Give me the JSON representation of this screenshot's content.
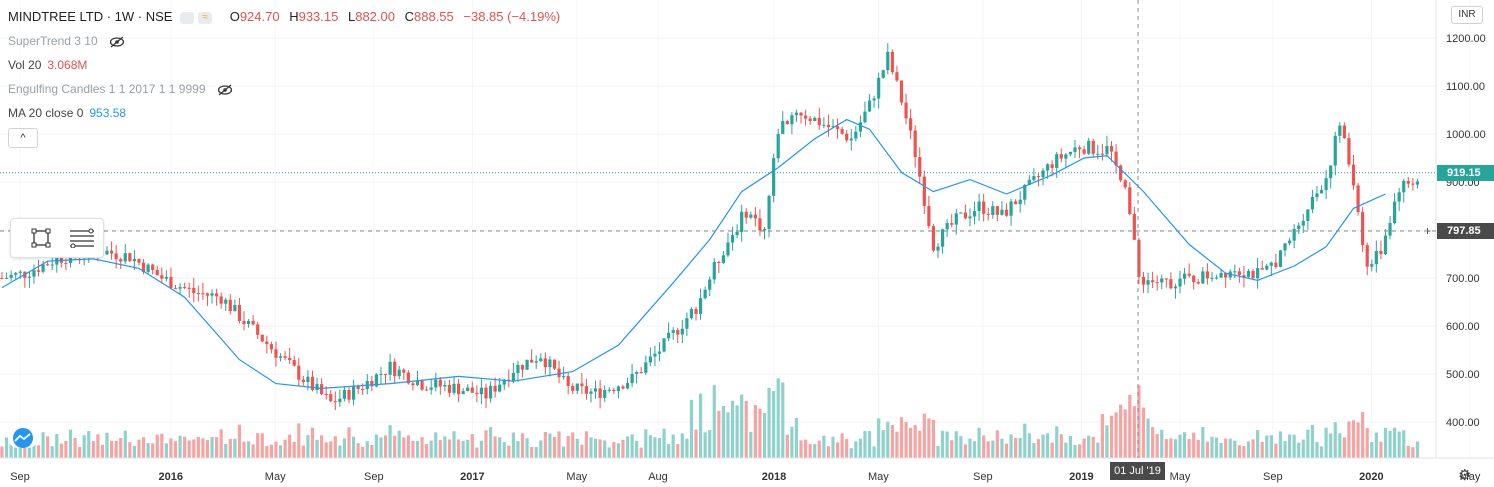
{
  "header": {
    "symbol": "MINDTREE LTD · 1W · NSE",
    "open_label": "O",
    "open": "924.70",
    "high_label": "H",
    "high": "933.15",
    "low_label": "L",
    "low": "882.00",
    "close_label": "C",
    "close": "888.55",
    "change": "−38.85 (−4.19%)"
  },
  "indicators": [
    {
      "label": "SuperTrend 3 10",
      "value": ""
    },
    {
      "label": "Vol 20",
      "value": "3.068M"
    },
    {
      "label": "Engulfing Candles 1 1 2017 1 1 9999",
      "value": ""
    },
    {
      "label": "MA 20 close 0",
      "value": "953.58"
    }
  ],
  "collapse_label": "^",
  "currency": "INR",
  "last_price_tag": "919.15",
  "crosshair_price_tag": "797.85",
  "crosshair_date_tag": "01 Jul '19",
  "colors": {
    "up": "#26a69a",
    "down": "#ef5350",
    "vol_up": "#8fd2cc",
    "vol_down": "#f4a5a3",
    "ma": "#2196f3"
  },
  "chart_data": {
    "type": "candlestick",
    "y_axis": {
      "ticks": [
        400,
        500,
        600,
        700,
        800,
        900,
        1000,
        1100,
        1200
      ],
      "tick_labels": [
        "400.00",
        "500.00",
        "600.00",
        "700.00",
        "800.00",
        "900.00",
        "1000.00",
        "1100.00",
        "1200.00"
      ]
    },
    "x_axis": {
      "tick_labels": [
        "Sep",
        "2016",
        "May",
        "Sep",
        "2017",
        "May",
        "Aug",
        "2018",
        "May",
        "Sep",
        "2019",
        "May",
        "Sep",
        "2020",
        "May"
      ]
    },
    "ma_20": [
      {
        "week": 0,
        "value": 680
      },
      {
        "week": 10,
        "value": 735
      },
      {
        "week": 20,
        "value": 740
      },
      {
        "week": 30,
        "value": 720
      },
      {
        "week": 40,
        "value": 660
      },
      {
        "week": 52,
        "value": 530
      },
      {
        "week": 60,
        "value": 480
      },
      {
        "week": 70,
        "value": 470
      },
      {
        "week": 85,
        "value": 480
      },
      {
        "week": 100,
        "value": 495
      },
      {
        "week": 112,
        "value": 485
      },
      {
        "week": 125,
        "value": 505
      },
      {
        "week": 135,
        "value": 560
      },
      {
        "week": 147,
        "value": 690
      },
      {
        "week": 155,
        "value": 780
      },
      {
        "week": 162,
        "value": 880
      },
      {
        "week": 170,
        "value": 930
      },
      {
        "week": 178,
        "value": 990
      },
      {
        "week": 185,
        "value": 1030
      },
      {
        "week": 190,
        "value": 1010
      },
      {
        "week": 197,
        "value": 920
      },
      {
        "week": 204,
        "value": 880
      },
      {
        "week": 212,
        "value": 905
      },
      {
        "week": 220,
        "value": 875
      },
      {
        "week": 230,
        "value": 915
      },
      {
        "week": 237,
        "value": 950
      },
      {
        "week": 242,
        "value": 955
      },
      {
        "week": 250,
        "value": 880
      },
      {
        "week": 260,
        "value": 770
      },
      {
        "week": 268,
        "value": 710
      },
      {
        "week": 275,
        "value": 695
      },
      {
        "week": 283,
        "value": 725
      },
      {
        "week": 290,
        "value": 765
      },
      {
        "week": 296,
        "value": 845
      },
      {
        "week": 303,
        "value": 875
      }
    ],
    "price_path": [
      {
        "week": 0,
        "value": 700
      },
      {
        "week": 5,
        "value": 710
      },
      {
        "week": 12,
        "value": 740
      },
      {
        "week": 20,
        "value": 760
      },
      {
        "week": 28,
        "value": 745
      },
      {
        "week": 35,
        "value": 700
      },
      {
        "week": 42,
        "value": 670
      },
      {
        "week": 48,
        "value": 660
      },
      {
        "week": 53,
        "value": 610
      },
      {
        "week": 60,
        "value": 545
      },
      {
        "week": 66,
        "value": 490
      },
      {
        "week": 72,
        "value": 440
      },
      {
        "week": 78,
        "value": 470
      },
      {
        "week": 85,
        "value": 515
      },
      {
        "week": 92,
        "value": 480
      },
      {
        "week": 100,
        "value": 470
      },
      {
        "week": 106,
        "value": 455
      },
      {
        "week": 112,
        "value": 510
      },
      {
        "week": 118,
        "value": 540
      },
      {
        "week": 124,
        "value": 470
      },
      {
        "week": 130,
        "value": 460
      },
      {
        "week": 138,
        "value": 490
      },
      {
        "week": 145,
        "value": 560
      },
      {
        "week": 152,
        "value": 640
      },
      {
        "week": 158,
        "value": 760
      },
      {
        "week": 163,
        "value": 840
      },
      {
        "week": 167,
        "value": 800
      },
      {
        "week": 170,
        "value": 1010
      },
      {
        "week": 174,
        "value": 1050
      },
      {
        "week": 180,
        "value": 1020
      },
      {
        "week": 186,
        "value": 990
      },
      {
        "week": 190,
        "value": 1060
      },
      {
        "week": 194,
        "value": 1160
      },
      {
        "week": 197,
        "value": 1070
      },
      {
        "week": 200,
        "value": 960
      },
      {
        "week": 204,
        "value": 770
      },
      {
        "week": 209,
        "value": 820
      },
      {
        "week": 214,
        "value": 850
      },
      {
        "week": 219,
        "value": 830
      },
      {
        "week": 224,
        "value": 880
      },
      {
        "week": 230,
        "value": 940
      },
      {
        "week": 236,
        "value": 975
      },
      {
        "week": 242,
        "value": 965
      },
      {
        "week": 246,
        "value": 900
      },
      {
        "week": 249,
        "value": 700
      },
      {
        "week": 254,
        "value": 690
      },
      {
        "week": 262,
        "value": 700
      },
      {
        "week": 270,
        "value": 720
      },
      {
        "week": 276,
        "value": 705
      },
      {
        "week": 281,
        "value": 760
      },
      {
        "week": 286,
        "value": 850
      },
      {
        "week": 290,
        "value": 910
      },
      {
        "week": 293,
        "value": 1020
      },
      {
        "week": 296,
        "value": 900
      },
      {
        "week": 299,
        "value": 720
      },
      {
        "week": 302,
        "value": 760
      },
      {
        "week": 306,
        "value": 890
      },
      {
        "week": 310,
        "value": 905
      }
    ],
    "last_price": 919.15,
    "crosshair_price": 797.85
  }
}
